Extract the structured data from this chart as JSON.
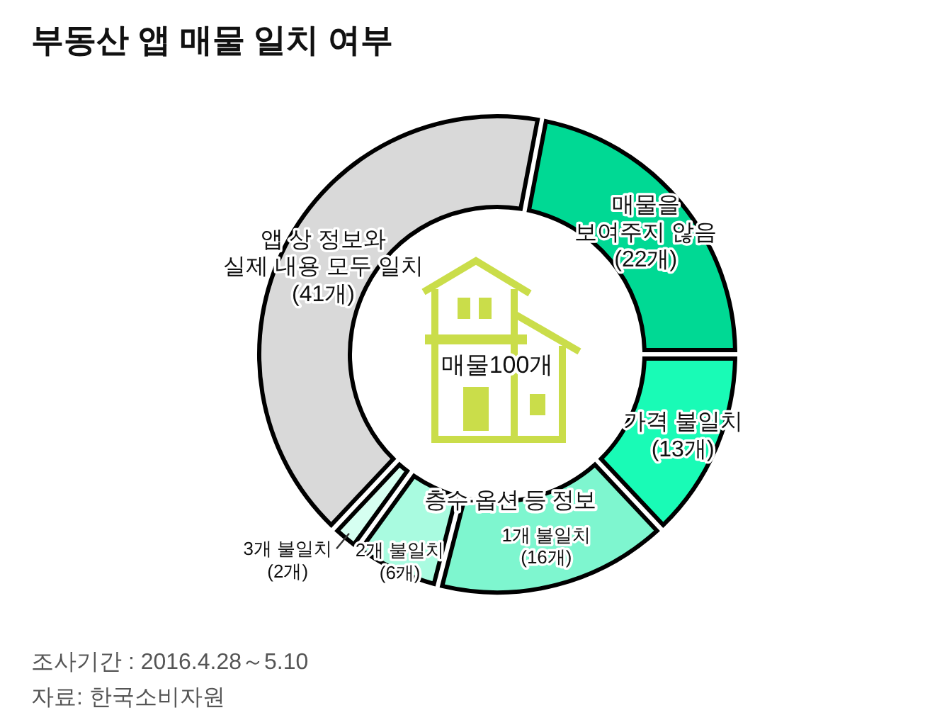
{
  "chart_data": {
    "type": "donut",
    "title": "부동산 앱 매물 일치 여부",
    "categories": [
      "매물을 보여주지 않음",
      "가격 불일치",
      "1개 불일치",
      "2개 불일치",
      "3개 불일치",
      "앱 상 정보와 실제 내용 모두 일치"
    ],
    "values": [
      22,
      13,
      16,
      6,
      2,
      41
    ],
    "value_labels": [
      "(22개)",
      "(13개)",
      "(16개)",
      "(6개)",
      "(2개)",
      "(41개)"
    ],
    "colors": [
      "#00d994",
      "#19fbb6",
      "#7ef6cf",
      "#a9fbe0",
      "#d6fff1",
      "#d9d9d9"
    ],
    "annotations": [
      "매물100개",
      "층수·옵션 등 정보",
      "조사기간 : 2016.4.28～5.10",
      "자료: 한국소비자원"
    ]
  }
}
